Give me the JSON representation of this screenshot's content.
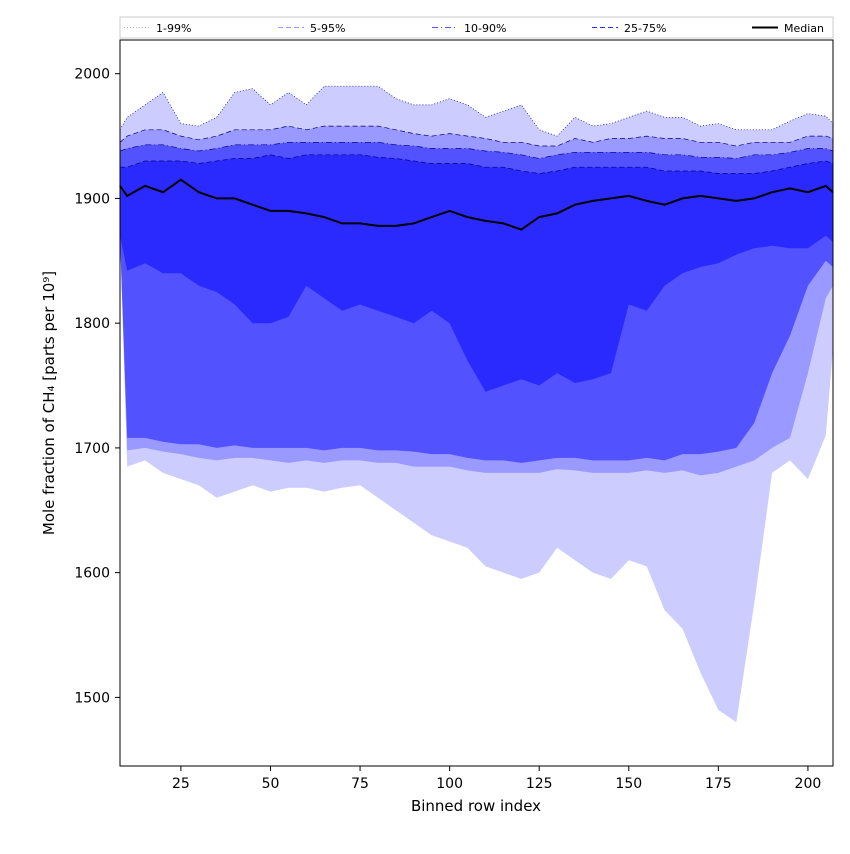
{
  "chart_data": {
    "type": "area",
    "xlabel": "Binned row index",
    "ylabel": "Mole fraction of CH₄ [parts per 10⁹]",
    "xlim": [
      8,
      207
    ],
    "ylim": [
      1445,
      2027
    ],
    "xticks": [
      25,
      50,
      75,
      100,
      125,
      150,
      175,
      200
    ],
    "yticks": [
      1500,
      1600,
      1700,
      1800,
      1900,
      2000
    ],
    "legend_position": "top, horizontal",
    "grid": false,
    "x": [
      8,
      10,
      15,
      20,
      25,
      30,
      35,
      40,
      45,
      50,
      55,
      60,
      65,
      70,
      75,
      80,
      85,
      90,
      95,
      100,
      105,
      110,
      115,
      120,
      125,
      130,
      135,
      140,
      145,
      150,
      155,
      160,
      165,
      170,
      175,
      180,
      185,
      190,
      195,
      200,
      205,
      207
    ],
    "bands": [
      {
        "name": "1-99%",
        "color": "#ccccff",
        "line_style": "dotted",
        "lower": [
          1870,
          1685,
          1690,
          1680,
          1675,
          1670,
          1660,
          1665,
          1670,
          1665,
          1668,
          1668,
          1665,
          1668,
          1670,
          1660,
          1650,
          1640,
          1630,
          1625,
          1620,
          1605,
          1600,
          1595,
          1600,
          1620,
          1610,
          1600,
          1595,
          1610,
          1605,
          1570,
          1555,
          1520,
          1490,
          1480,
          1575,
          1680,
          1690,
          1675,
          1710,
          1780
        ],
        "upper": [
          1955,
          1965,
          1975,
          1985,
          1960,
          1958,
          1965,
          1985,
          1988,
          1975,
          1985,
          1975,
          1990,
          1990,
          1990,
          1990,
          1980,
          1975,
          1975,
          1980,
          1975,
          1965,
          1970,
          1975,
          1955,
          1950,
          1965,
          1958,
          1960,
          1965,
          1970,
          1965,
          1965,
          1958,
          1960,
          1955,
          1955,
          1955,
          1962,
          1968,
          1966,
          1960
        ]
      },
      {
        "name": "5-95%",
        "color": "#9999ff",
        "line_style": "dashed",
        "lower": [
          1870,
          1698,
          1700,
          1697,
          1695,
          1692,
          1690,
          1692,
          1692,
          1690,
          1688,
          1690,
          1688,
          1690,
          1690,
          1688,
          1688,
          1685,
          1685,
          1685,
          1682,
          1680,
          1680,
          1680,
          1680,
          1683,
          1682,
          1680,
          1680,
          1680,
          1682,
          1680,
          1682,
          1678,
          1680,
          1685,
          1690,
          1700,
          1708,
          1760,
          1820,
          1830
        ],
        "upper": [
          1945,
          1950,
          1955,
          1955,
          1950,
          1947,
          1950,
          1955,
          1955,
          1955,
          1958,
          1955,
          1958,
          1958,
          1958,
          1958,
          1955,
          1952,
          1950,
          1952,
          1950,
          1948,
          1945,
          1945,
          1942,
          1942,
          1948,
          1945,
          1948,
          1948,
          1950,
          1948,
          1948,
          1945,
          1945,
          1942,
          1945,
          1945,
          1945,
          1950,
          1950,
          1948
        ]
      },
      {
        "name": "10-90%",
        "color": "#5252ff",
        "line_style": "dash-dot",
        "lower": [
          1870,
          1708,
          1708,
          1705,
          1703,
          1703,
          1700,
          1702,
          1700,
          1700,
          1700,
          1700,
          1698,
          1700,
          1700,
          1698,
          1698,
          1697,
          1695,
          1695,
          1692,
          1690,
          1690,
          1688,
          1690,
          1692,
          1692,
          1690,
          1690,
          1690,
          1692,
          1690,
          1695,
          1695,
          1697,
          1700,
          1720,
          1760,
          1790,
          1830,
          1850,
          1845
        ],
        "upper": [
          1938,
          1940,
          1943,
          1943,
          1940,
          1938,
          1940,
          1943,
          1943,
          1943,
          1945,
          1945,
          1945,
          1945,
          1945,
          1945,
          1943,
          1942,
          1940,
          1940,
          1940,
          1938,
          1937,
          1935,
          1932,
          1935,
          1937,
          1937,
          1937,
          1937,
          1937,
          1935,
          1935,
          1933,
          1933,
          1932,
          1935,
          1935,
          1937,
          1940,
          1940,
          1938
        ]
      },
      {
        "name": "25-75%",
        "color": "#2a2aff",
        "line_style": "dashed",
        "lower": [
          1870,
          1842,
          1848,
          1840,
          1840,
          1830,
          1825,
          1815,
          1800,
          1800,
          1805,
          1830,
          1820,
          1810,
          1815,
          1810,
          1805,
          1800,
          1810,
          1800,
          1770,
          1745,
          1750,
          1755,
          1750,
          1760,
          1752,
          1755,
          1760,
          1815,
          1810,
          1830,
          1840,
          1845,
          1848,
          1855,
          1860,
          1862,
          1860,
          1860,
          1870,
          1865
        ],
        "upper": [
          1925,
          1925,
          1930,
          1930,
          1930,
          1928,
          1930,
          1932,
          1932,
          1935,
          1932,
          1935,
          1935,
          1935,
          1935,
          1933,
          1932,
          1930,
          1928,
          1928,
          1928,
          1925,
          1925,
          1922,
          1920,
          1922,
          1925,
          1925,
          1925,
          1925,
          1925,
          1922,
          1922,
          1922,
          1920,
          1920,
          1920,
          1922,
          1925,
          1928,
          1930,
          1928
        ]
      }
    ],
    "median": {
      "name": "Median",
      "color": "#000000",
      "values": [
        1910,
        1902,
        1910,
        1905,
        1915,
        1905,
        1900,
        1900,
        1895,
        1890,
        1890,
        1888,
        1885,
        1880,
        1880,
        1878,
        1878,
        1880,
        1885,
        1890,
        1885,
        1882,
        1880,
        1875,
        1885,
        1888,
        1895,
        1898,
        1900,
        1902,
        1898,
        1895,
        1900,
        1902,
        1900,
        1898,
        1900,
        1905,
        1908,
        1905,
        1910,
        1905
      ]
    }
  }
}
